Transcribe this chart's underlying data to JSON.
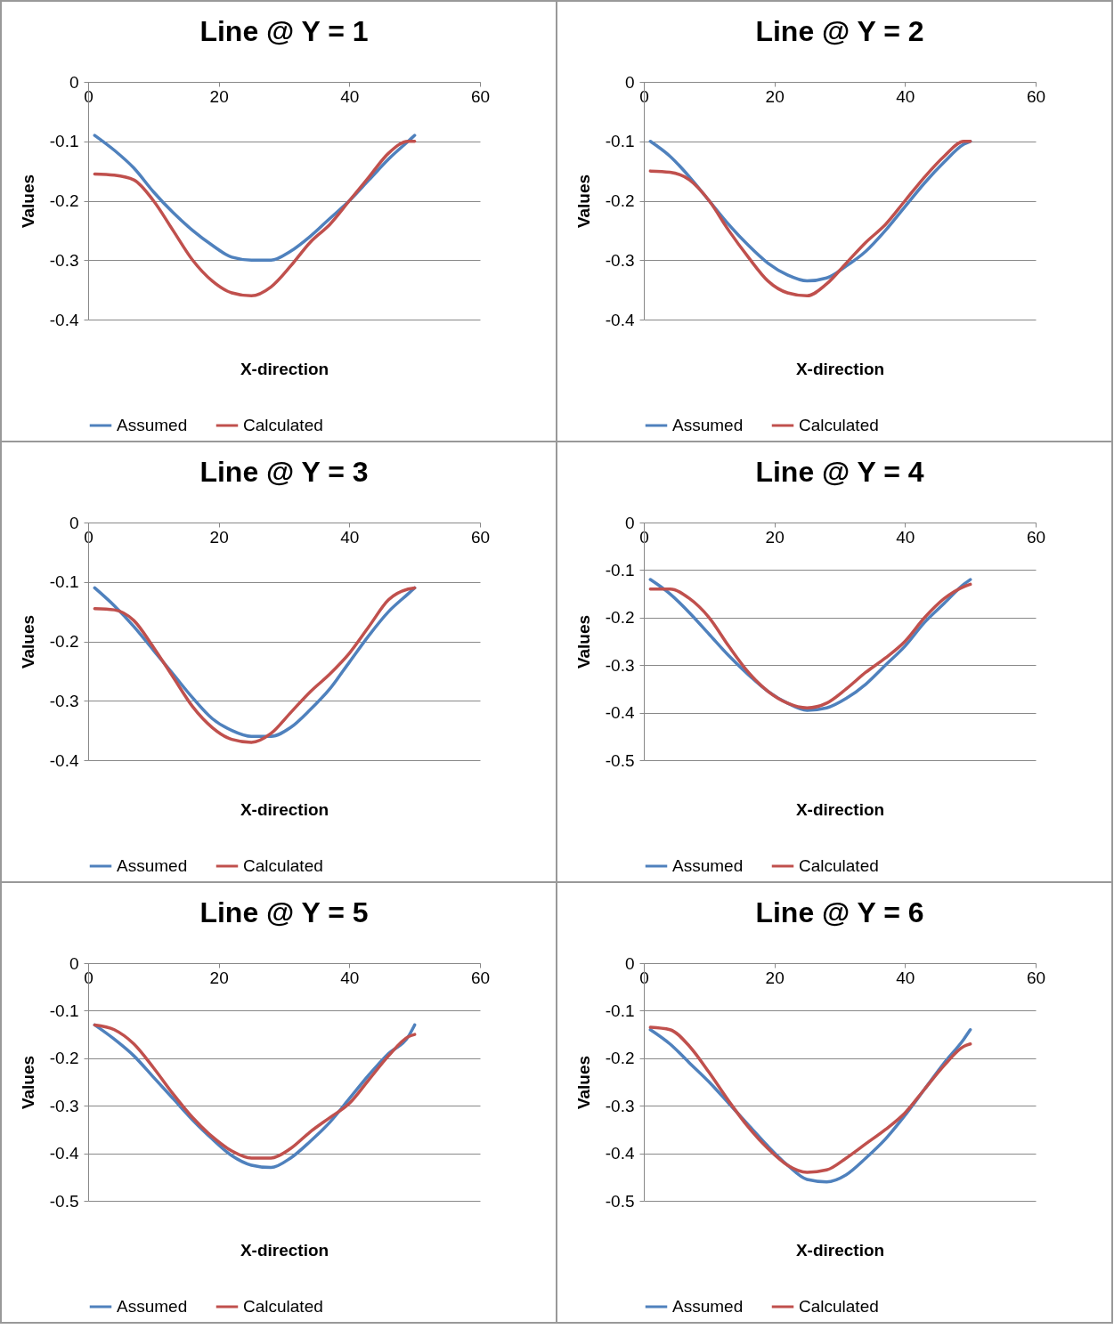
{
  "chart_data": [
    {
      "type": "line",
      "title": "Line @ Y = 1",
      "xlabel": "X-direction",
      "ylabel": "Values",
      "x": [
        1,
        4,
        7,
        10,
        13,
        16,
        19,
        22,
        25,
        28,
        31,
        34,
        37,
        40,
        43,
        46,
        49,
        50
      ],
      "xlim": [
        0,
        60
      ],
      "xticks": [
        0,
        20,
        40,
        60
      ],
      "ylim": [
        -0.4,
        0
      ],
      "yticks": [
        -0.4,
        -0.3,
        -0.2,
        -0.1,
        0
      ],
      "grid": "y",
      "legend": "bottom",
      "series": [
        {
          "name": "Assumed",
          "color": "#4f81bd",
          "values": [
            -0.09,
            -0.115,
            -0.145,
            -0.185,
            -0.22,
            -0.25,
            -0.275,
            -0.295,
            -0.3,
            -0.3,
            -0.285,
            -0.26,
            -0.23,
            -0.2,
            -0.165,
            -0.13,
            -0.1,
            -0.09
          ]
        },
        {
          "name": "Calculated",
          "color": "#c0504d",
          "values": [
            -0.155,
            -0.157,
            -0.165,
            -0.2,
            -0.25,
            -0.3,
            -0.335,
            -0.355,
            -0.36,
            -0.345,
            -0.31,
            -0.27,
            -0.24,
            -0.2,
            -0.16,
            -0.12,
            -0.1,
            -0.1
          ]
        }
      ]
    },
    {
      "type": "line",
      "title": "Line @ Y = 2",
      "xlabel": "X-direction",
      "ylabel": "Values",
      "x": [
        1,
        4,
        7,
        10,
        13,
        16,
        19,
        22,
        25,
        28,
        31,
        34,
        37,
        40,
        43,
        46,
        49,
        50
      ],
      "xlim": [
        0,
        60
      ],
      "xticks": [
        0,
        20,
        40,
        60
      ],
      "ylim": [
        -0.4,
        0
      ],
      "yticks": [
        -0.4,
        -0.3,
        -0.2,
        -0.1,
        0
      ],
      "grid": "y",
      "legend": "bottom",
      "series": [
        {
          "name": "Assumed",
          "color": "#4f81bd",
          "values": [
            -0.1,
            -0.125,
            -0.16,
            -0.2,
            -0.24,
            -0.275,
            -0.305,
            -0.325,
            -0.335,
            -0.33,
            -0.31,
            -0.285,
            -0.25,
            -0.21,
            -0.17,
            -0.135,
            -0.105,
            -0.1
          ]
        },
        {
          "name": "Calculated",
          "color": "#c0504d",
          "values": [
            -0.15,
            -0.152,
            -0.165,
            -0.2,
            -0.25,
            -0.295,
            -0.335,
            -0.355,
            -0.36,
            -0.34,
            -0.305,
            -0.27,
            -0.24,
            -0.2,
            -0.16,
            -0.125,
            -0.1,
            -0.1
          ]
        }
      ]
    },
    {
      "type": "line",
      "title": "Line @ Y = 3",
      "xlabel": "X-direction",
      "ylabel": "Values",
      "x": [
        1,
        4,
        7,
        10,
        13,
        16,
        19,
        22,
        25,
        28,
        31,
        34,
        37,
        40,
        43,
        46,
        49,
        50
      ],
      "xlim": [
        0,
        60
      ],
      "xticks": [
        0,
        20,
        40,
        60
      ],
      "ylim": [
        -0.4,
        0
      ],
      "yticks": [
        -0.4,
        -0.3,
        -0.2,
        -0.1,
        0
      ],
      "grid": "y",
      "legend": "bottom",
      "series": [
        {
          "name": "Assumed",
          "color": "#4f81bd",
          "values": [
            -0.11,
            -0.14,
            -0.175,
            -0.215,
            -0.255,
            -0.295,
            -0.33,
            -0.35,
            -0.36,
            -0.36,
            -0.345,
            -0.315,
            -0.28,
            -0.235,
            -0.19,
            -0.15,
            -0.12,
            -0.11
          ]
        },
        {
          "name": "Calculated",
          "color": "#c0504d",
          "values": [
            -0.145,
            -0.147,
            -0.165,
            -0.21,
            -0.26,
            -0.31,
            -0.345,
            -0.365,
            -0.37,
            -0.355,
            -0.32,
            -0.285,
            -0.255,
            -0.22,
            -0.175,
            -0.13,
            -0.112,
            -0.11
          ]
        }
      ]
    },
    {
      "type": "line",
      "title": "Line @ Y = 4",
      "xlabel": "X-direction",
      "ylabel": "Values",
      "x": [
        1,
        4,
        7,
        10,
        13,
        16,
        19,
        22,
        25,
        28,
        31,
        34,
        37,
        40,
        43,
        46,
        49,
        50
      ],
      "xlim": [
        0,
        60
      ],
      "xticks": [
        0,
        20,
        40,
        60
      ],
      "ylim": [
        -0.5,
        0
      ],
      "yticks": [
        -0.5,
        -0.4,
        -0.3,
        -0.2,
        -0.1,
        0
      ],
      "grid": "y",
      "legend": "bottom",
      "series": [
        {
          "name": "Assumed",
          "color": "#4f81bd",
          "values": [
            -0.12,
            -0.15,
            -0.19,
            -0.235,
            -0.28,
            -0.32,
            -0.355,
            -0.38,
            -0.395,
            -0.39,
            -0.37,
            -0.34,
            -0.3,
            -0.26,
            -0.21,
            -0.17,
            -0.13,
            -0.12
          ]
        },
        {
          "name": "Calculated",
          "color": "#c0504d",
          "values": [
            -0.14,
            -0.14,
            -0.16,
            -0.2,
            -0.26,
            -0.315,
            -0.355,
            -0.38,
            -0.39,
            -0.38,
            -0.35,
            -0.315,
            -0.285,
            -0.25,
            -0.2,
            -0.16,
            -0.135,
            -0.13
          ]
        }
      ]
    },
    {
      "type": "line",
      "title": "Line @ Y = 5",
      "xlabel": "X-direction",
      "ylabel": "Values",
      "x": [
        1,
        4,
        7,
        10,
        13,
        16,
        19,
        22,
        25,
        28,
        31,
        34,
        37,
        40,
        43,
        46,
        49,
        50
      ],
      "xlim": [
        0,
        60
      ],
      "xticks": [
        0,
        20,
        40,
        60
      ],
      "ylim": [
        -0.5,
        0
      ],
      "yticks": [
        -0.5,
        -0.4,
        -0.3,
        -0.2,
        -0.1,
        0
      ],
      "grid": "y",
      "legend": "bottom",
      "series": [
        {
          "name": "Assumed",
          "color": "#4f81bd",
          "values": [
            -0.13,
            -0.16,
            -0.195,
            -0.24,
            -0.285,
            -0.33,
            -0.37,
            -0.405,
            -0.425,
            -0.43,
            -0.41,
            -0.375,
            -0.335,
            -0.285,
            -0.235,
            -0.19,
            -0.155,
            -0.13
          ]
        },
        {
          "name": "Calculated",
          "color": "#c0504d",
          "values": [
            -0.13,
            -0.14,
            -0.17,
            -0.22,
            -0.275,
            -0.325,
            -0.365,
            -0.395,
            -0.41,
            -0.41,
            -0.39,
            -0.355,
            -0.325,
            -0.295,
            -0.245,
            -0.195,
            -0.155,
            -0.15
          ]
        }
      ]
    },
    {
      "type": "line",
      "title": "Line @ Y = 6",
      "xlabel": "X-direction",
      "ylabel": "Values",
      "x": [
        1,
        4,
        7,
        10,
        13,
        16,
        19,
        22,
        25,
        28,
        31,
        34,
        37,
        40,
        43,
        46,
        49,
        50
      ],
      "xlim": [
        0,
        60
      ],
      "xticks": [
        0,
        20,
        40,
        60
      ],
      "ylim": [
        -0.5,
        0
      ],
      "yticks": [
        -0.5,
        -0.4,
        -0.3,
        -0.2,
        -0.1,
        0
      ],
      "grid": "y",
      "legend": "bottom",
      "series": [
        {
          "name": "Assumed",
          "color": "#4f81bd",
          "values": [
            -0.14,
            -0.17,
            -0.21,
            -0.25,
            -0.295,
            -0.34,
            -0.385,
            -0.425,
            -0.455,
            -0.46,
            -0.445,
            -0.41,
            -0.37,
            -0.32,
            -0.265,
            -0.21,
            -0.16,
            -0.14
          ]
        },
        {
          "name": "Calculated",
          "color": "#c0504d",
          "values": [
            -0.135,
            -0.14,
            -0.175,
            -0.23,
            -0.29,
            -0.345,
            -0.39,
            -0.425,
            -0.44,
            -0.435,
            -0.41,
            -0.38,
            -0.35,
            -0.315,
            -0.265,
            -0.215,
            -0.175,
            -0.17
          ]
        }
      ]
    }
  ]
}
